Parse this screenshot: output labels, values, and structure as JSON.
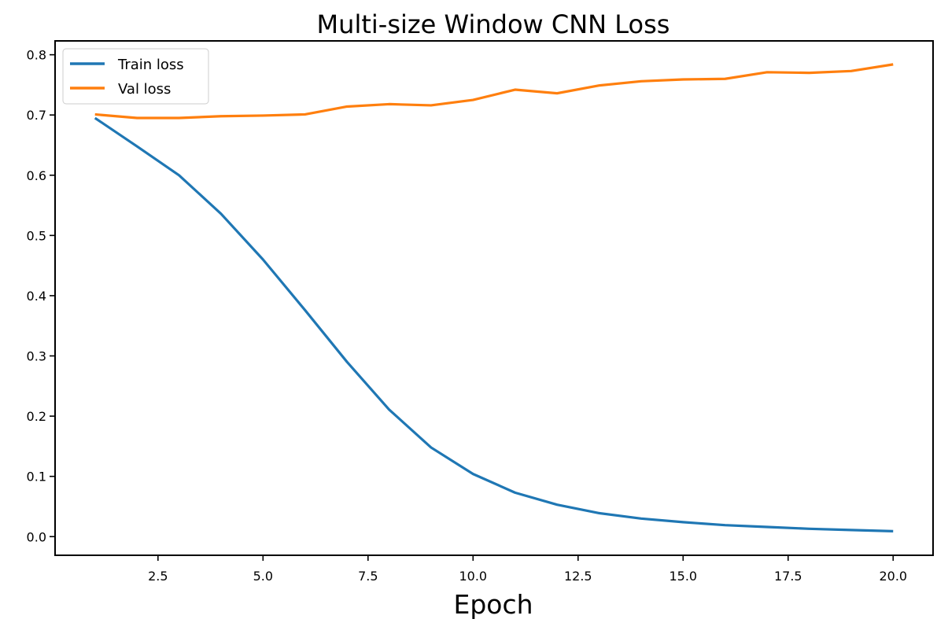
{
  "chart_data": {
    "type": "line",
    "title": "Multi-size Window CNN Loss",
    "xlabel": "Epoch",
    "ylabel": "",
    "xlim": [
      0.05,
      20.95
    ],
    "ylim": [
      -0.031,
      0.823
    ],
    "xticks": [
      2.5,
      5.0,
      7.5,
      10.0,
      12.5,
      15.0,
      17.5,
      20.0
    ],
    "xtick_labels": [
      "2.5",
      "5.0",
      "7.5",
      "10.0",
      "12.5",
      "15.0",
      "17.5",
      "20.0"
    ],
    "yticks": [
      0.0,
      0.1,
      0.2,
      0.3,
      0.4,
      0.5,
      0.6,
      0.7,
      0.8
    ],
    "ytick_labels": [
      "0.0",
      "0.1",
      "0.2",
      "0.3",
      "0.4",
      "0.5",
      "0.6",
      "0.7",
      "0.8"
    ],
    "grid": false,
    "legend_position": "upper-left",
    "x": [
      1,
      2,
      3,
      4,
      5,
      6,
      7,
      8,
      9,
      10,
      11,
      12,
      13,
      14,
      15,
      16,
      17,
      18,
      19,
      20
    ],
    "series": [
      {
        "name": "Train loss",
        "color": "#1f77b4",
        "values": [
          0.695,
          0.648,
          0.6,
          0.536,
          0.46,
          0.376,
          0.29,
          0.211,
          0.148,
          0.104,
          0.073,
          0.053,
          0.039,
          0.03,
          0.024,
          0.019,
          0.016,
          0.013,
          0.011,
          0.009
        ]
      },
      {
        "name": "Val loss",
        "color": "#ff7f0e",
        "values": [
          0.701,
          0.695,
          0.695,
          0.698,
          0.699,
          0.701,
          0.714,
          0.718,
          0.716,
          0.725,
          0.742,
          0.736,
          0.749,
          0.756,
          0.759,
          0.76,
          0.771,
          0.77,
          0.773,
          0.784
        ]
      }
    ]
  }
}
